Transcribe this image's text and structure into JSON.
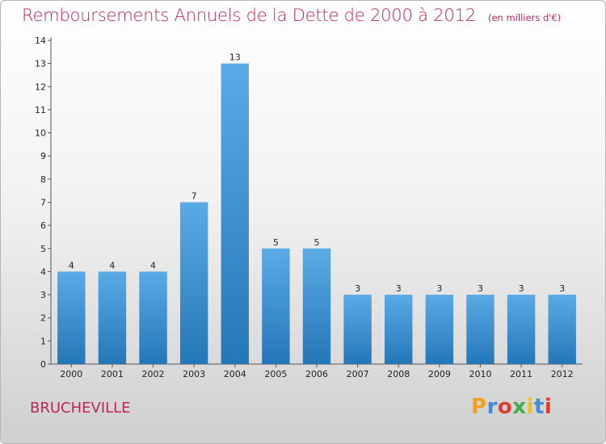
{
  "title": "Remboursements Annuels de la Dette de 2000 à 2012",
  "unit": "(en milliers d'€)",
  "commune": "BRUCHEVILLE",
  "logo": {
    "letters": [
      "P",
      "r",
      "o",
      "x",
      "i",
      "t",
      "i"
    ],
    "colors": [
      "#f0a01e",
      "#3a8fd6",
      "#e23a2a",
      "#3fae49",
      "#f0c01e",
      "#3a8fd6",
      "#e23a2a"
    ]
  },
  "colors": {
    "bar_top": "#5aaae6",
    "bar_bottom": "#2477b8",
    "title": "#c0245c"
  },
  "chart_data": {
    "type": "bar",
    "categories": [
      "2000",
      "2001",
      "2002",
      "2003",
      "2004",
      "2005",
      "2006",
      "2007",
      "2008",
      "2009",
      "2010",
      "2011",
      "2012"
    ],
    "values": [
      4,
      4,
      4,
      7,
      13,
      5,
      5,
      3,
      3,
      3,
      3,
      3,
      3
    ],
    "data_labels": [
      "4",
      "4",
      "4",
      "7",
      "13",
      "5",
      "5",
      "3",
      "3",
      "3",
      "3",
      "3",
      "3"
    ],
    "title": "Remboursements Annuels de la Dette de 2000 à 2012",
    "subtitle": "(en milliers d'€)",
    "xlabel": "",
    "ylabel": "",
    "ylim": [
      0,
      14
    ],
    "yticks": [
      "0",
      "1",
      "2",
      "3",
      "4",
      "5",
      "6",
      "7",
      "8",
      "9",
      "10",
      "11",
      "12",
      "13",
      "14"
    ],
    "grid": false,
    "legend": "none"
  }
}
